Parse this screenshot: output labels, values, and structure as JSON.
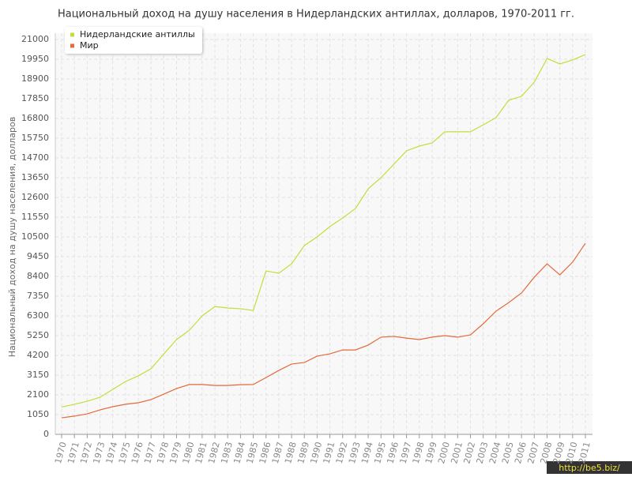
{
  "chart_data": {
    "type": "line",
    "title": "Национальный доход на душу населения в Нидерландских антиллах, долларов, 1970-2011 гг.",
    "y_label": "Национальный доход на душу населения, долларов",
    "watermark": "http://be5.biz/",
    "x": [
      1970,
      1971,
      1972,
      1973,
      1974,
      1975,
      1976,
      1977,
      1978,
      1979,
      1980,
      1981,
      1982,
      1983,
      1984,
      1985,
      1986,
      1987,
      1988,
      1989,
      1990,
      1991,
      1992,
      1993,
      1994,
      1995,
      1996,
      1997,
      1998,
      1999,
      2000,
      2001,
      2002,
      2003,
      2004,
      2005,
      2006,
      2007,
      2008,
      2009,
      2010,
      2011
    ],
    "xlim": [
      1970,
      2011
    ],
    "series": [
      {
        "name": "Нидерландские антиллы",
        "color": "#c5dc3a",
        "values": [
          1450,
          1600,
          1760,
          1970,
          2390,
          2810,
          3110,
          3490,
          4280,
          5040,
          5540,
          6300,
          6800,
          6720,
          6680,
          6590,
          8690,
          8570,
          9070,
          10040,
          10500,
          11050,
          11510,
          12010,
          13060,
          13650,
          14360,
          15080,
          15330,
          15500,
          16090,
          16090,
          16090,
          16460,
          16840,
          17770,
          17980,
          18730,
          19990,
          19700,
          19910,
          20200
        ]
      },
      {
        "name": "Мир",
        "color": "#e4693b",
        "values": [
          880,
          970,
          1090,
          1300,
          1470,
          1600,
          1680,
          1850,
          2140,
          2440,
          2650,
          2650,
          2600,
          2600,
          2640,
          2650,
          3020,
          3400,
          3740,
          3820,
          4160,
          4280,
          4490,
          4490,
          4750,
          5170,
          5210,
          5120,
          5040,
          5170,
          5250,
          5170,
          5290,
          5880,
          6550,
          7010,
          7520,
          8360,
          9070,
          8480,
          9160,
          10160
        ]
      }
    ],
    "ylim": [
      0,
      21000
    ],
    "yticks": [
      0,
      1050,
      2100,
      3150,
      4200,
      5250,
      6300,
      7350,
      8400,
      9450,
      10500,
      11550,
      12600,
      13650,
      14700,
      15750,
      16800,
      17850,
      18900,
      19950,
      21000
    ],
    "grid": true,
    "legend": "top-left"
  }
}
